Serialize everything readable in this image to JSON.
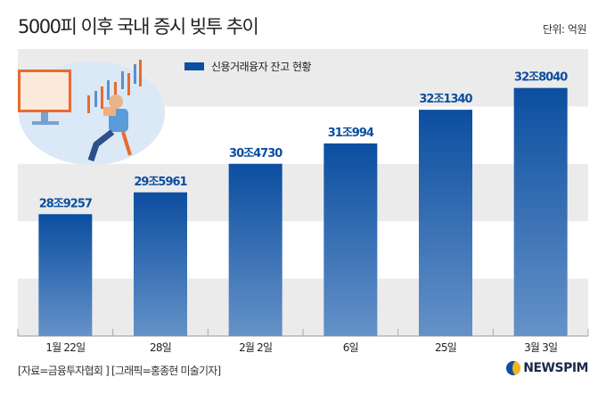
{
  "title": "5000피 이후 국내 증시 빚투 추이",
  "unit": "단위: 억원",
  "source": "[자료=금융투자협회 ] [그래픽=홍종현 미술기자]",
  "logo": "NEWSPIM",
  "colors": {
    "bar_top": "#0b4ea0",
    "bar_bottom": "#6592c8",
    "band": "#ebebeb"
  },
  "chart_data": {
    "type": "bar",
    "title": "5000피 이후 국내 증시 빚투 추이",
    "categories": [
      "1월 22일",
      "28일",
      "2월 2일",
      "6일",
      "25일",
      "3월 3일"
    ],
    "series": [
      {
        "name": "신용거래융자 잔고 현황",
        "values": [
          289257,
          295961,
          304730,
          310994,
          321340,
          328040
        ]
      }
    ],
    "labels": [
      "28조9257",
      "29조5961",
      "30조4730",
      "31조994",
      "32조1340",
      "32조8040"
    ],
    "ylabel": "억원",
    "ylim": [
      251800,
      340000
    ],
    "grid": false,
    "legend": "top-center"
  }
}
